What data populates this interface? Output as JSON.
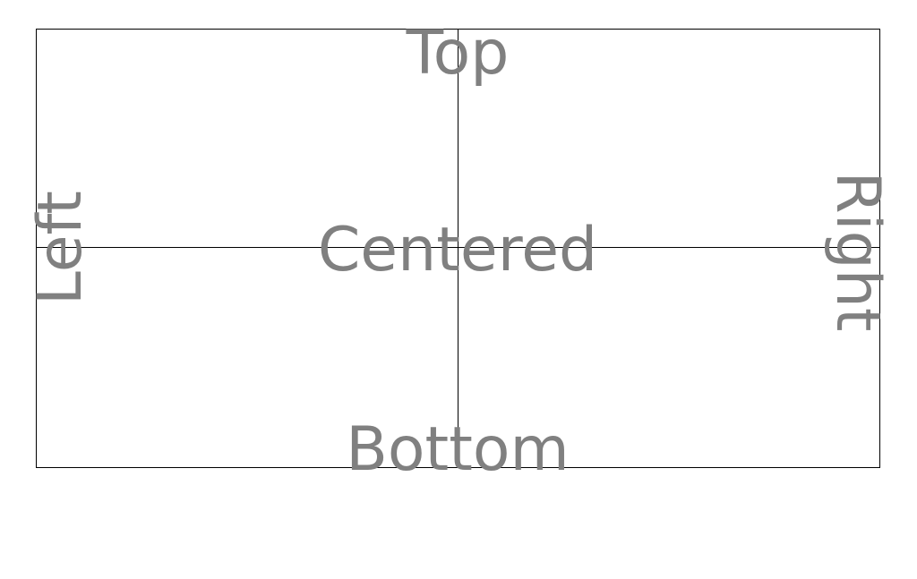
{
  "labels": {
    "top": "Top",
    "left": "Left",
    "centered": "Centered",
    "right": "Right",
    "bottom": "Bottom"
  },
  "colors": {
    "label": "#808080",
    "line": "#000000",
    "background": "#ffffff"
  }
}
